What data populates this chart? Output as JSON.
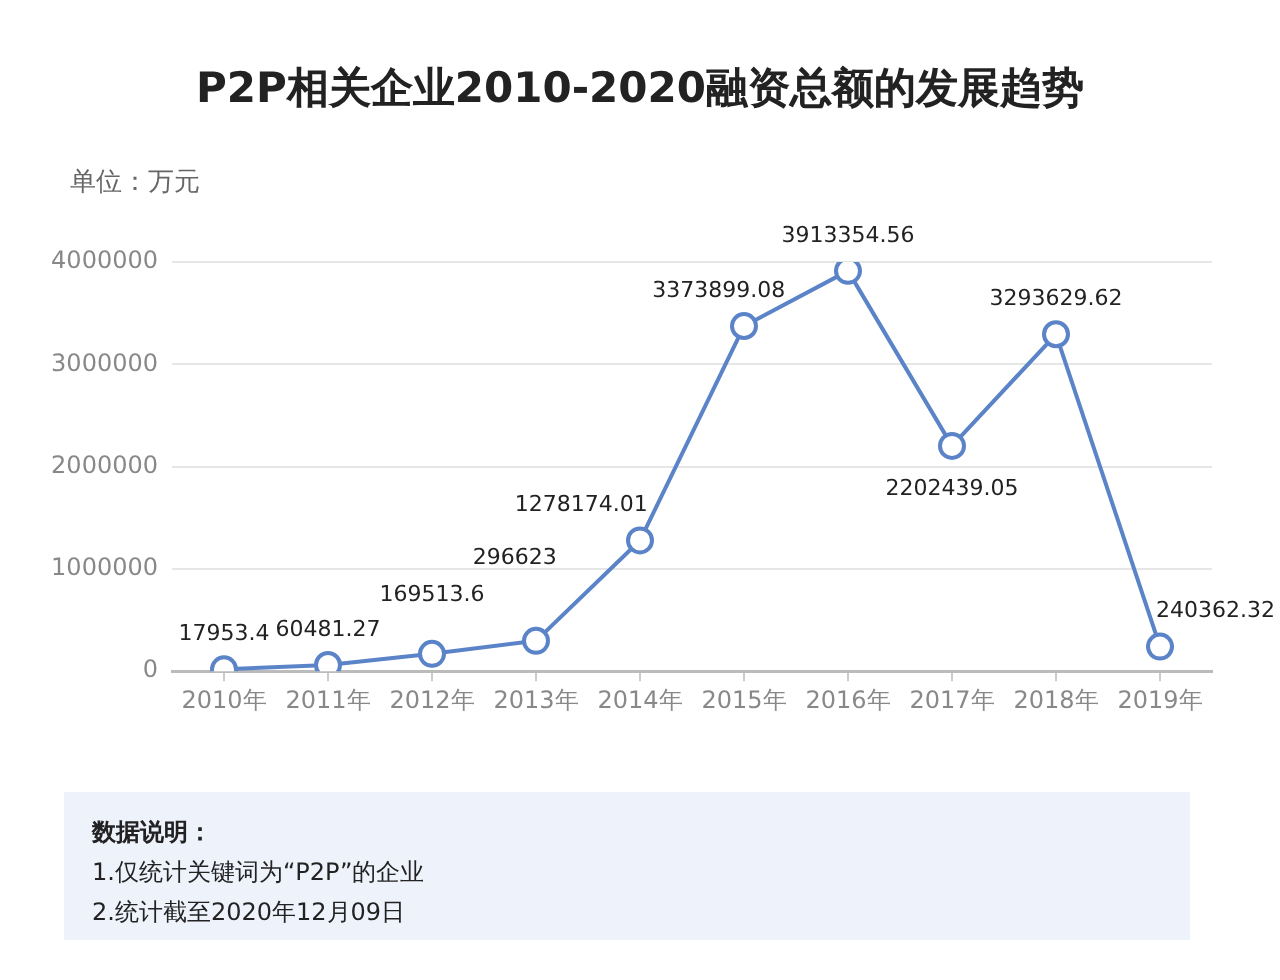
{
  "chart_data": {
    "type": "line",
    "title": "P2P相关企业2010-2020融资总额的发展趋势",
    "ylabel": "单位：万元",
    "categories": [
      "2010年",
      "2011年",
      "2012年",
      "2013年",
      "2014年",
      "2015年",
      "2016年",
      "2017年",
      "2018年",
      "2019年"
    ],
    "series": [
      {
        "color": "#5b84c8",
        "values": [
          17953.4,
          60481.27,
          169513.6,
          296623,
          1278174.01,
          3373899.08,
          3913354.56,
          2202439.05,
          3293629.62,
          240362.32
        ]
      }
    ],
    "ylim": [
      0,
      4000000
    ],
    "yticks": [
      0,
      1000000,
      2000000,
      3000000,
      4000000
    ],
    "grid": "y",
    "legend": false,
    "marker": "circle",
    "line_style": "solid",
    "data_labels": true,
    "annotations": [
      "数据说明：",
      "1.仅统计关键词为“P2P”的企业",
      "2.统计截至2020年12月09日"
    ]
  }
}
